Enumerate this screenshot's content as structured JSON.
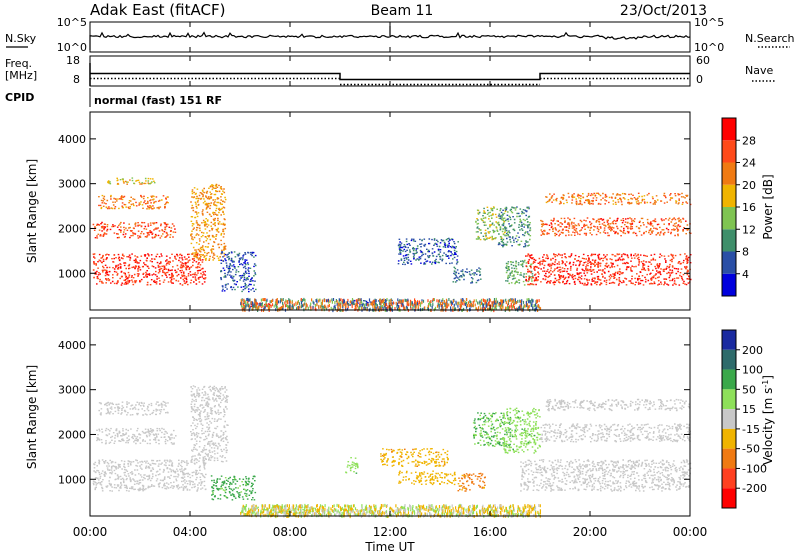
{
  "header": {
    "station": "Adak East (fitACF)",
    "beam": "Beam 11",
    "date": "23/Oct/2013"
  },
  "time_axis": {
    "label": "Time UT",
    "ticks": [
      "00:00",
      "04:00",
      "08:00",
      "12:00",
      "16:00",
      "20:00",
      "00:00"
    ],
    "range_hours": [
      0,
      24
    ]
  },
  "noise_panel": {
    "left_label": "N.Sky",
    "right_label": "N.Search",
    "left_ticks": [
      "10^5",
      "10^0"
    ],
    "right_ticks": [
      "10^5",
      "10^0"
    ]
  },
  "freq_panel": {
    "left_label_top": "Freq.",
    "left_label_unit": "[MHz]",
    "right_label": "Nave",
    "cpid_label": "CPID",
    "left_ticks": [
      "18",
      "8"
    ],
    "right_ticks": [
      "60",
      "0"
    ],
    "mode_text": "normal (fast) 151 RF"
  },
  "range_axis": {
    "label": "Slant Range [km]",
    "ticks": [
      "1000",
      "2000",
      "3000",
      "4000"
    ],
    "range_km": [
      180,
      4600
    ]
  },
  "power_scale": {
    "label": "Power [dB]",
    "ticks": [
      "4",
      "8",
      "12",
      "16",
      "20",
      "24",
      "28"
    ],
    "colors": [
      "#0000dd",
      "#2a4fa6",
      "#3f8f6b",
      "#7fc452",
      "#f0b400",
      "#f07a12",
      "#ff4a1a",
      "#ff0000"
    ]
  },
  "velocity_scale": {
    "label_main": "Velocity [m s",
    "label_sup": "-1",
    "label_end": "]",
    "ticks": [
      "200",
      "100",
      "50",
      "15",
      "-15",
      "-50",
      "-100",
      "-200"
    ],
    "colors": [
      "#1a2aa0",
      "#2e6b6b",
      "#3aa84a",
      "#8ee05a",
      "#c8c8c8",
      "#f0b400",
      "#f07a12",
      "#ff4020",
      "#ff0000"
    ]
  },
  "chart_data": {
    "type": "heatmap",
    "title": "Adak East (fitACF)  Beam 11  23/Oct/2013",
    "xlabel": "Time UT",
    "ylabel": "Slant Range [km]",
    "xlim_hours": [
      0,
      24
    ],
    "ylim_km": [
      180,
      4600
    ],
    "freq_mhz_segments": [
      {
        "from_h": 0,
        "to_h": 10,
        "value": 12.5
      },
      {
        "from_h": 10,
        "to_h": 18,
        "value": 10.5
      },
      {
        "from_h": 18,
        "to_h": 24,
        "value": 12.5
      }
    ],
    "power_regions": [
      {
        "t": [
          0.1,
          4.6
        ],
        "r": [
          750,
          1450
        ],
        "db": 28
      },
      {
        "t": [
          0.1,
          3.4
        ],
        "r": [
          1800,
          2150
        ],
        "db": 26
      },
      {
        "t": [
          0.3,
          3.1
        ],
        "r": [
          2450,
          2750
        ],
        "db": 22
      },
      {
        "t": [
          0.5,
          2.6
        ],
        "r": [
          3000,
          3150
        ],
        "db": 18
      },
      {
        "t": [
          4.0,
          5.4
        ],
        "r": [
          1300,
          3000
        ],
        "db": 20
      },
      {
        "t": [
          5.2,
          6.6
        ],
        "r": [
          600,
          1500
        ],
        "db": 6
      },
      {
        "t": [
          6.4,
          7.2
        ],
        "r": [
          250,
          350
        ],
        "db": 28
      },
      {
        "t": [
          9.9,
          12.5
        ],
        "r": [
          300,
          420
        ],
        "db": 6
      },
      {
        "t": [
          12.3,
          14.7
        ],
        "r": [
          1200,
          1800
        ],
        "db": 6
      },
      {
        "t": [
          14.5,
          15.6
        ],
        "r": [
          800,
          1150
        ],
        "db": 8
      },
      {
        "t": [
          15.4,
          16.6
        ],
        "r": [
          1750,
          2500
        ],
        "db": 14
      },
      {
        "t": [
          16.3,
          17.6
        ],
        "r": [
          1600,
          2500
        ],
        "db": 10
      },
      {
        "t": [
          16.6,
          17.7
        ],
        "r": [
          750,
          1300
        ],
        "db": 12
      },
      {
        "t": [
          17.4,
          24.0
        ],
        "r": [
          750,
          1450
        ],
        "db": 28
      },
      {
        "t": [
          18.0,
          24.0
        ],
        "r": [
          1850,
          2250
        ],
        "db": 25
      },
      {
        "t": [
          18.2,
          24.0
        ],
        "r": [
          2550,
          2800
        ],
        "db": 22
      }
    ],
    "velocity_regions": [
      {
        "t": [
          0.1,
          4.6
        ],
        "r": [
          750,
          1450
        ],
        "v": 0
      },
      {
        "t": [
          0.2,
          3.4
        ],
        "r": [
          1800,
          2150
        ],
        "v": 0
      },
      {
        "t": [
          0.3,
          3.1
        ],
        "r": [
          2450,
          2750
        ],
        "v": 0
      },
      {
        "t": [
          4.0,
          5.5
        ],
        "r": [
          1400,
          3100
        ],
        "v": 0
      },
      {
        "t": [
          4.8,
          6.6
        ],
        "r": [
          550,
          1100
        ],
        "v": 60
      },
      {
        "t": [
          6.5,
          9.0
        ],
        "r": [
          250,
          400
        ],
        "v": 30
      },
      {
        "t": [
          10.2,
          10.7
        ],
        "r": [
          1150,
          1500
        ],
        "v": 40
      },
      {
        "t": [
          11.6,
          14.3
        ],
        "r": [
          1300,
          1700
        ],
        "v": -40
      },
      {
        "t": [
          12.3,
          14.6
        ],
        "r": [
          900,
          1200
        ],
        "v": -30
      },
      {
        "t": [
          14.7,
          15.8
        ],
        "r": [
          750,
          1150
        ],
        "v": -60
      },
      {
        "t": [
          15.3,
          16.8
        ],
        "r": [
          1750,
          2500
        ],
        "v": 50
      },
      {
        "t": [
          16.5,
          18.0
        ],
        "r": [
          1600,
          2600
        ],
        "v": 40
      },
      {
        "t": [
          17.2,
          24.0
        ],
        "r": [
          750,
          1450
        ],
        "v": 0
      },
      {
        "t": [
          18.0,
          24.0
        ],
        "r": [
          1850,
          2250
        ],
        "v": 0
      },
      {
        "t": [
          18.2,
          24.0
        ],
        "r": [
          2550,
          2800
        ],
        "v": 0
      }
    ]
  }
}
